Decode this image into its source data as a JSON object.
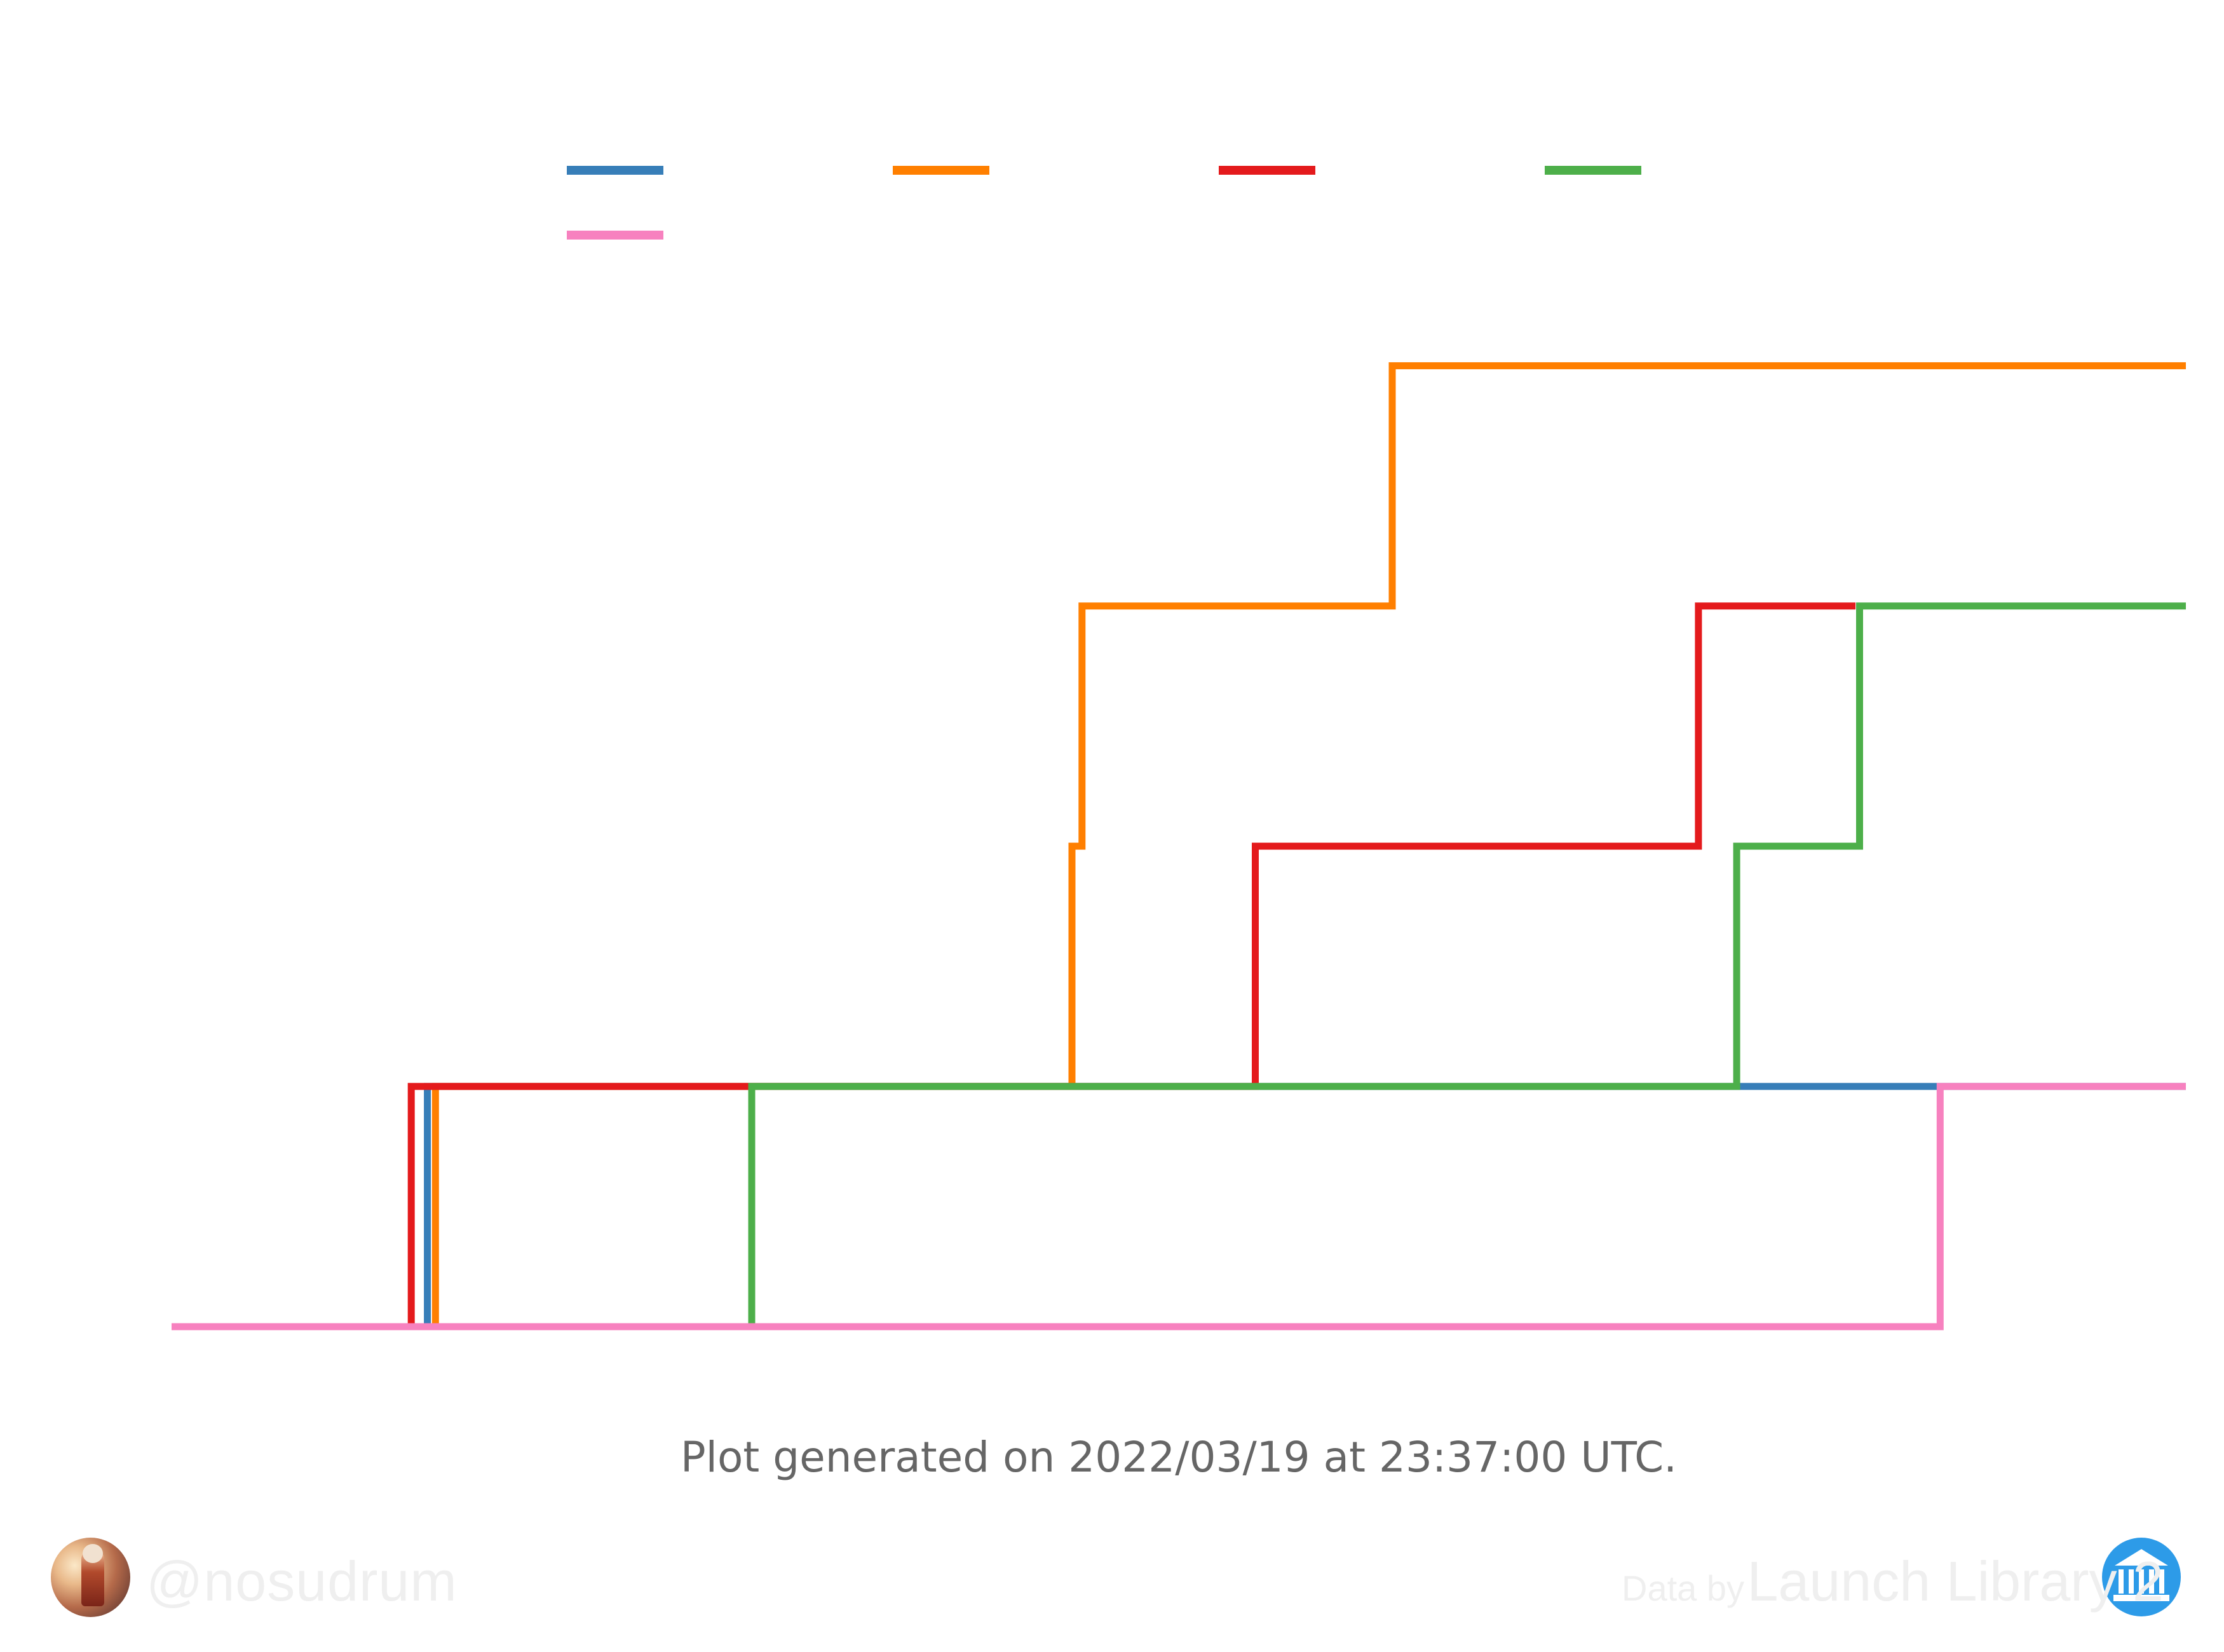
{
  "chart_data": {
    "type": "line",
    "step": true,
    "title": "",
    "xlabel": "",
    "ylabel": "",
    "xlim": [
      0,
      100
    ],
    "ylim": [
      0,
      4.2
    ],
    "grid": false,
    "legend_position": "top",
    "series": [
      {
        "color": "#377eb8",
        "x": [
          0,
          12.7,
          12.7,
          100
        ],
        "y": [
          0,
          0,
          1,
          1
        ]
      },
      {
        "color": "#ff7f00",
        "x": [
          0,
          13.1,
          13.1,
          44.7,
          44.7,
          45.2,
          45.2,
          60.6,
          60.6,
          100
        ],
        "y": [
          0,
          0,
          1,
          1,
          2,
          2,
          3,
          3,
          4,
          4
        ]
      },
      {
        "color": "#e41a1c",
        "x": [
          0,
          11.9,
          11.9,
          28.6,
          28.6,
          53.8,
          53.8,
          75.8,
          75.8,
          83.6,
          83.6
        ],
        "y": [
          0,
          0,
          1,
          1,
          1,
          1,
          2,
          2,
          3,
          3,
          3
        ]
      },
      {
        "color": "#4daf4a",
        "x": [
          0,
          28.8,
          28.8,
          77.7,
          77.7,
          83.8,
          83.8,
          100
        ],
        "y": [
          0,
          0,
          1,
          1,
          2,
          2,
          3,
          3
        ]
      },
      {
        "color": "#f781bf",
        "x": [
          0,
          87.8,
          87.8,
          100
        ],
        "y": [
          0,
          0,
          1,
          1
        ]
      }
    ]
  },
  "footer": {
    "generated": "Plot generated on 2022/03/19 at 23:37:00 UTC.",
    "handle": "@nosudrum",
    "data_by": "Data by",
    "source": "Launch Library 2"
  },
  "icons": {
    "avatar": "astronaut-avatar-icon",
    "source_logo": "launch-library-logo-icon"
  }
}
